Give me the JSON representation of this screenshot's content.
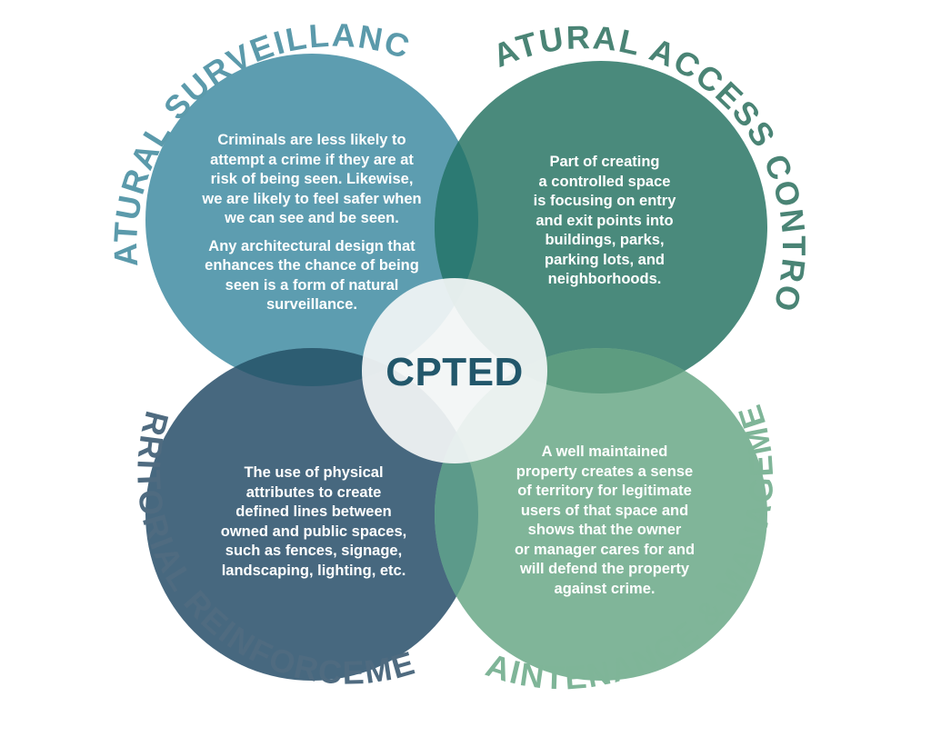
{
  "center": {
    "label": "CPTED"
  },
  "quadrants": {
    "natural_surveillance": {
      "title": "NATURAL SURVEILLANCE",
      "paragraph1": [
        "Criminals are less likely to",
        "attempt a crime if they are at",
        "risk of being seen. Likewise,",
        "we are likely to feel safer when",
        "we can see and be seen."
      ],
      "paragraph2": [
        "Any architectural design that",
        "enhances the chance of being",
        "seen is a form of natural",
        "surveillance."
      ]
    },
    "natural_access_control": {
      "title": "NATURAL ACCESS CONTROL",
      "lines": [
        "Part of creating",
        "a controlled space",
        "is focusing on entry",
        "and exit points into",
        "buildings, parks,",
        "parking lots, and",
        "neighborhoods."
      ]
    },
    "territorial_reinforcement": {
      "title": "TERRITORIAL REINFORCEMENT",
      "lines": [
        "The use of physical",
        "attributes to create",
        "defined lines between",
        "owned and public spaces,",
        "such as fences, signage,",
        "landscaping, lighting, etc."
      ]
    },
    "maintenance_management": {
      "title": "MAINTENANCE & MANAGEMENT",
      "lines": [
        "A well maintained",
        "property creates a sense",
        "of territory for legitimate",
        "users of that space and",
        "shows that the owner",
        "or manager cares for and",
        "will defend the property",
        "against crime."
      ]
    }
  },
  "colors": {
    "surveillance_circle": "#5d9db0",
    "access_control_circle": "#4a8a7c",
    "territorial_circle": "#47687f",
    "maintenance_circle": "#80b599",
    "overlap_top": "#2c7a73",
    "overlap_left": "#2d5d72",
    "overlap_right": "#5d9c80",
    "overlap_bottom": "#5c9a8a",
    "center_disc": "#f2f5f5",
    "center_text": "#22576b",
    "surveillance_title": "#5b9aab",
    "access_control_title": "#4a8475",
    "territorial_title": "#4f6b80",
    "maintenance_title": "#7fb598",
    "body_text": "#ffffff"
  }
}
